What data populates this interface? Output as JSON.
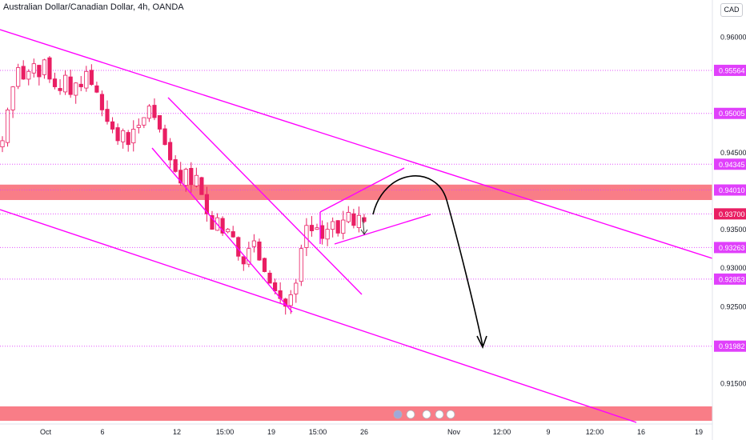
{
  "header": {
    "title": "Australian Dollar/Canadian Dollar, 4h, OANDA",
    "currency_badge": "CAD"
  },
  "colors": {
    "magenta": "#ff00ff",
    "zone": "#f7525f",
    "bull": "#ffffff",
    "bear": "#e91e63",
    "level_tag": "#e040fb",
    "current_price_tag": "#e91e63",
    "grid": "#f0f3fa",
    "axis_text": "#131722"
  },
  "chart_data": {
    "type": "candlestick",
    "title": "Australian Dollar/Canadian Dollar, 4h, OANDA",
    "x_axis_labels": [
      "Oct",
      "6",
      "12",
      "15:00",
      "19",
      "15:00",
      "26",
      "Nov",
      "12:00",
      "9",
      "12:00",
      "16",
      "19"
    ],
    "y_tick_labels": [
      "0.96000",
      "0.94500",
      "0.93500",
      "0.93000",
      "0.92500",
      "0.91500"
    ],
    "y_range": [
      0.9094,
      0.9614
    ],
    "level_lines": [
      0.95564,
      0.95005,
      0.94345,
      0.9401,
      0.937,
      0.93263,
      0.92853,
      0.91982
    ],
    "level_labels": [
      "0.95564",
      "0.95005",
      "0.94345",
      "0.94010",
      "0.93700",
      "0.93263",
      "0.92853",
      "0.91982"
    ],
    "current_price": 0.937,
    "resistance_zone": [
      0.9388,
      0.9408
    ],
    "bottom_zone": [
      0.9094,
      0.9112
    ],
    "price_close_sequence": [
      0.9465,
      0.9505,
      0.9535,
      0.956,
      0.9545,
      0.9555,
      0.9565,
      0.9548,
      0.957,
      0.9545,
      0.9535,
      0.953,
      0.955,
      0.9525,
      0.954,
      0.9535,
      0.9555,
      0.9538,
      0.9528,
      0.9505,
      0.949,
      0.948,
      0.9465,
      0.9478,
      0.946,
      0.948,
      0.9485,
      0.9495,
      0.951,
      0.9495,
      0.948,
      0.946,
      0.944,
      0.9425,
      0.941,
      0.9428,
      0.9408,
      0.942,
      0.9395,
      0.937,
      0.935,
      0.9365,
      0.9345,
      0.935,
      0.934,
      0.9315,
      0.9305,
      0.9325,
      0.9335,
      0.931,
      0.9295,
      0.928,
      0.927,
      0.926,
      0.925,
      0.9265,
      0.928,
      0.9325,
      0.9355,
      0.9348,
      0.9352,
      0.9338,
      0.935,
      0.936,
      0.9345,
      0.9362,
      0.9372,
      0.9355,
      0.9368,
      0.936
    ],
    "series": [
      {
        "name": "AUDCAD 4h"
      }
    ],
    "grid": false,
    "legend": "none"
  }
}
